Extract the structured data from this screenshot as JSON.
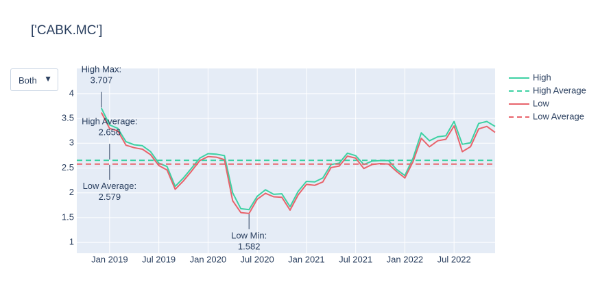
{
  "chart_data": {
    "type": "line",
    "title": "['CABK.MC']",
    "dropdown": {
      "selected": "Both"
    },
    "x": [
      "2018-12",
      "2019-01",
      "2019-02",
      "2019-03",
      "2019-04",
      "2019-05",
      "2019-06",
      "2019-07",
      "2019-08",
      "2019-09",
      "2019-10",
      "2019-11",
      "2019-12",
      "2020-01",
      "2020-02",
      "2020-03",
      "2020-04",
      "2020-05",
      "2020-06",
      "2020-07",
      "2020-08",
      "2020-09",
      "2020-10",
      "2020-11",
      "2020-12",
      "2021-01",
      "2021-02",
      "2021-03",
      "2021-04",
      "2021-05",
      "2021-06",
      "2021-07",
      "2021-08",
      "2021-09",
      "2021-10",
      "2021-11",
      "2021-12",
      "2022-01",
      "2022-02",
      "2022-03",
      "2022-04",
      "2022-05",
      "2022-06",
      "2022-07",
      "2022-08",
      "2022-09",
      "2022-10",
      "2022-11",
      "2022-12"
    ],
    "series": [
      {
        "name": "High",
        "color": "#3dd1a3",
        "values": [
          3.707,
          3.37,
          3.3,
          3.03,
          2.97,
          2.95,
          2.83,
          2.6,
          2.53,
          2.13,
          2.3,
          2.5,
          2.7,
          2.79,
          2.78,
          2.75,
          2.0,
          1.68,
          1.66,
          1.93,
          2.06,
          1.97,
          1.98,
          1.72,
          2.03,
          2.23,
          2.22,
          2.3,
          2.57,
          2.6,
          2.8,
          2.75,
          2.57,
          2.64,
          2.65,
          2.65,
          2.47,
          2.35,
          2.7,
          3.21,
          3.05,
          3.13,
          3.15,
          3.44,
          2.98,
          3.01,
          3.4,
          3.44,
          3.34
        ]
      },
      {
        "name": "High Average",
        "color": "#3dd1a3",
        "dash": true,
        "value": 2.656
      },
      {
        "name": "Low",
        "color": "#e8636b",
        "values": [
          3.62,
          3.3,
          3.25,
          2.96,
          2.91,
          2.88,
          2.77,
          2.55,
          2.46,
          2.07,
          2.24,
          2.44,
          2.65,
          2.73,
          2.72,
          2.67,
          1.84,
          1.6,
          1.582,
          1.87,
          1.99,
          1.92,
          1.91,
          1.65,
          1.96,
          2.17,
          2.15,
          2.22,
          2.51,
          2.54,
          2.74,
          2.7,
          2.49,
          2.57,
          2.59,
          2.58,
          2.43,
          2.3,
          2.63,
          3.1,
          2.93,
          3.05,
          3.08,
          3.35,
          2.83,
          2.93,
          3.29,
          3.34,
          3.22
        ]
      },
      {
        "name": "Low Average",
        "color": "#e8636b",
        "dash": true,
        "value": 2.579
      }
    ],
    "annotations": [
      {
        "text": "High Max:",
        "x": "2018-12",
        "y": 3.707,
        "side": "above"
      },
      {
        "text": "High Average:",
        "x": "2019-01",
        "y": 2.656,
        "side": "above"
      },
      {
        "text": "Low Average:",
        "x": "2019-01",
        "y": 2.579,
        "side": "below"
      },
      {
        "text": "Low Min:",
        "x": "2020-06",
        "y": 1.582,
        "side": "below"
      }
    ],
    "xlim": [
      "2018-09",
      "2022-12"
    ],
    "xticks": [
      {
        "value": "2019-01",
        "label": "Jan 2019"
      },
      {
        "value": "2019-07",
        "label": "Jul 2019"
      },
      {
        "value": "2020-01",
        "label": "Jan 2020"
      },
      {
        "value": "2020-07",
        "label": "Jul 2020"
      },
      {
        "value": "2021-01",
        "label": "Jan 2021"
      },
      {
        "value": "2021-07",
        "label": "Jul 2021"
      },
      {
        "value": "2022-01",
        "label": "Jan 2022"
      },
      {
        "value": "2022-07",
        "label": "Jul 2022"
      }
    ],
    "ylim": [
      0.78,
      4.51
    ],
    "yticks": [
      1,
      1.5,
      2,
      2.5,
      3,
      3.5,
      4
    ],
    "grid": true,
    "legend": "right"
  }
}
